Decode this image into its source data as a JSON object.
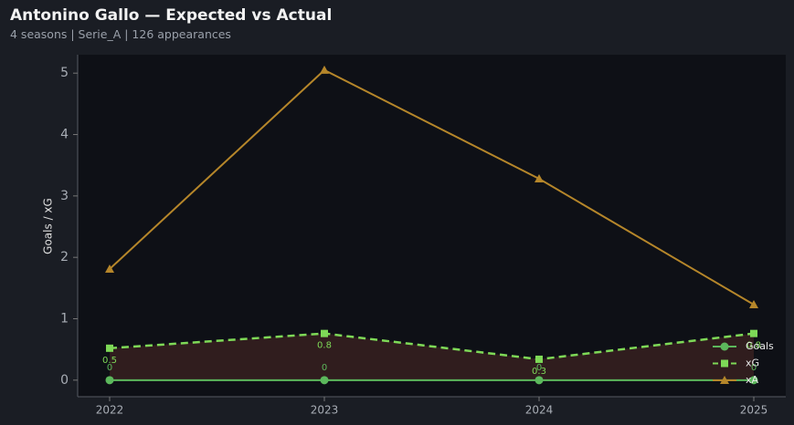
{
  "chart_data": {
    "type": "line",
    "title": "Antonino Gallo — Expected vs Actual",
    "subtitle": "4 seasons | Serie_A | 126 appearances",
    "y_label": "Goals / xG",
    "categories": [
      "2022",
      "2023",
      "2024",
      "2025"
    ],
    "series": [
      {
        "name": "Goals",
        "color": "#5cb85c",
        "marker": "circle",
        "dash": false,
        "values": [
          0,
          0,
          0,
          0
        ]
      },
      {
        "name": "xG",
        "color": "#7ed957",
        "marker": "square",
        "dash": true,
        "values": [
          0.52,
          0.76,
          0.34,
          0.76
        ],
        "value_labels": [
          "0.5",
          "0.8",
          "0.3",
          "0.8"
        ]
      },
      {
        "name": "xA",
        "color": "#b5862a",
        "marker": "triangle",
        "dash": false,
        "values": [
          1.81,
          5.05,
          3.28,
          1.23
        ]
      }
    ],
    "ylim": [
      -0.27,
      5.3
    ],
    "yticks": [
      0,
      1,
      2,
      3,
      4,
      5
    ],
    "legend": "lower right"
  }
}
